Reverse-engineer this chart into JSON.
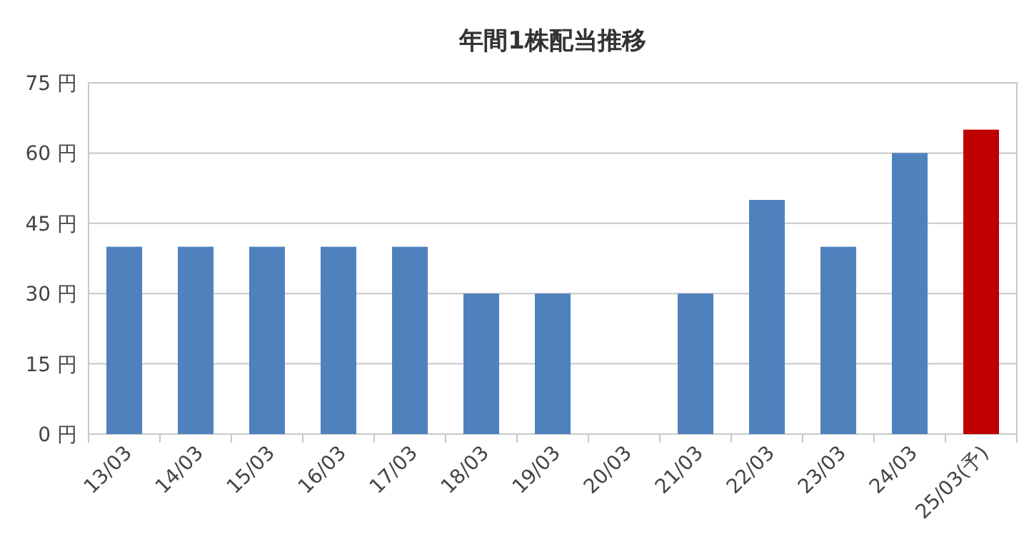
{
  "chart_data": {
    "type": "bar",
    "title": "年間1株配当推移",
    "categories": [
      "13/03",
      "14/03",
      "15/03",
      "16/03",
      "17/03",
      "18/03",
      "19/03",
      "20/03",
      "21/03",
      "22/03",
      "23/03",
      "24/03",
      "25/03(予)"
    ],
    "values": [
      40,
      40,
      40,
      40,
      40,
      30,
      30,
      0,
      30,
      50,
      40,
      60,
      65
    ],
    "colors": [
      "#4f81bd",
      "#4f81bd",
      "#4f81bd",
      "#4f81bd",
      "#4f81bd",
      "#4f81bd",
      "#4f81bd",
      "#4f81bd",
      "#4f81bd",
      "#4f81bd",
      "#4f81bd",
      "#4f81bd",
      "#c00000"
    ],
    "ylim": [
      0,
      75
    ],
    "yticks": [
      {
        "value": 0,
        "label": "0 円"
      },
      {
        "value": 15,
        "label": "15 円"
      },
      {
        "value": 30,
        "label": "30 円"
      },
      {
        "value": 45,
        "label": "45 円"
      },
      {
        "value": 60,
        "label": "60 円"
      },
      {
        "value": 75,
        "label": "75 円"
      }
    ],
    "grid": "y"
  }
}
